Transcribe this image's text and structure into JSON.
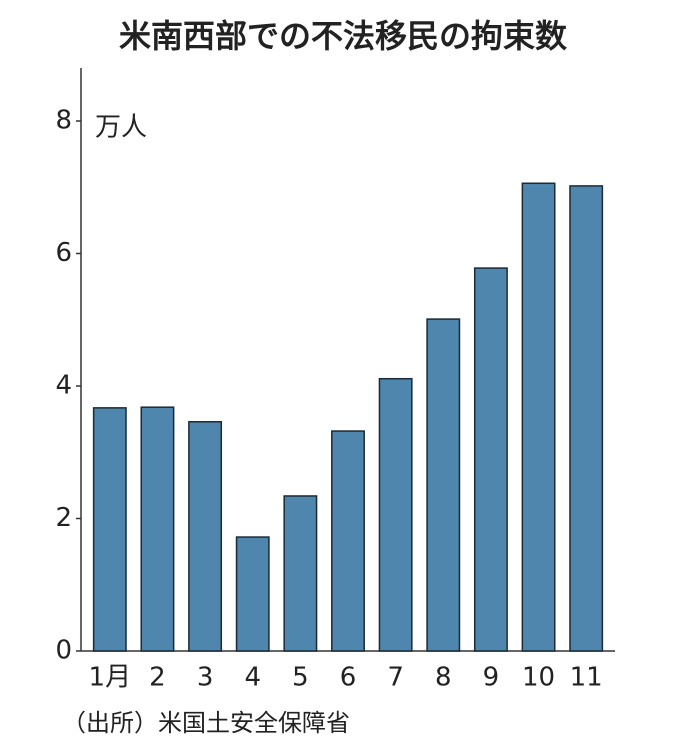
{
  "chart_data": {
    "type": "bar",
    "title": "米南西部での不法移民の拘束数",
    "unit": "万人",
    "categories": [
      "1月",
      "2",
      "3",
      "4",
      "5",
      "6",
      "7",
      "8",
      "9",
      "10",
      "11"
    ],
    "values": [
      3.67,
      3.68,
      3.46,
      1.72,
      2.34,
      3.32,
      4.11,
      5.01,
      5.78,
      7.06,
      7.02
    ],
    "color": "#4f86ad",
    "ylim": [
      0,
      8.8
    ],
    "yticks": [
      0,
      2,
      4,
      6,
      8
    ],
    "grid": false,
    "source": "（出所）米国土安全保障省"
  }
}
